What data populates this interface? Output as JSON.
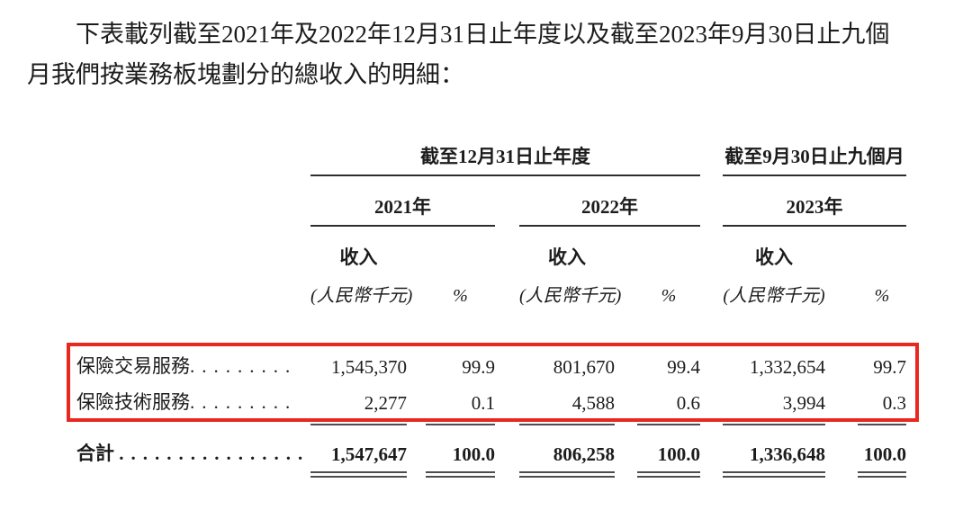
{
  "intro": {
    "line1": "下表載列截至2021年及2022年12月31日止年度以及截至2023年9月30日止九個",
    "line2": "月我們按業務板塊劃分的總收入的明細："
  },
  "table": {
    "period_headers": {
      "annual": "截至12月31日止年度",
      "nine_month": "截至9月30日止九個月"
    },
    "year_headers": [
      "2021年",
      "2022年",
      "2023年"
    ],
    "column_headers": {
      "revenue": "收入",
      "revenue_unit": "(人民幣千元)",
      "percent": "%"
    },
    "rows": [
      {
        "label": "保險交易服務",
        "leader": ".........",
        "values": [
          "1,545,370",
          "99.9",
          "801,670",
          "99.4",
          "1,332,654",
          "99.7"
        ]
      },
      {
        "label": "保險技術服務",
        "leader": ".........",
        "values": [
          "2,277",
          "0.1",
          "4,588",
          "0.6",
          "3,994",
          "0.3"
        ]
      }
    ],
    "total_row": {
      "label": "合計",
      "leader": "................",
      "values": [
        "1,547,647",
        "100.0",
        "806,258",
        "100.0",
        "1,336,648",
        "100.0"
      ]
    },
    "highlight_color": "#e8281e"
  }
}
